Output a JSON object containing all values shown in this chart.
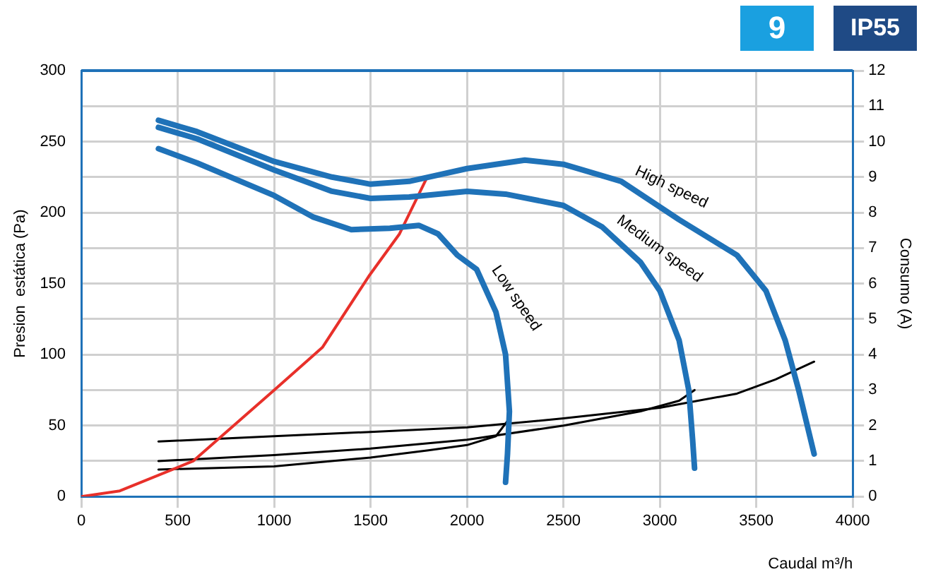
{
  "chart_data": {
    "type": "line",
    "xlabel": "Caudal m³/h",
    "ylabel": "Presion  estática (Pa)",
    "y2label": "Consumo (A)",
    "annotations": [
      "9",
      "IP55"
    ],
    "xlim": [
      0,
      4000
    ],
    "xticks": [
      0,
      500,
      1000,
      1500,
      2000,
      2500,
      3000,
      3500,
      4000
    ],
    "ylim": [
      0,
      300
    ],
    "yticks": [
      0,
      50,
      100,
      150,
      200,
      250,
      300
    ],
    "y2lim": [
      0,
      12
    ],
    "y2ticks": [
      0,
      1,
      2,
      3,
      4,
      5,
      6,
      7,
      8,
      9,
      10,
      11,
      12
    ],
    "grid": true,
    "legend": false,
    "marker": "none",
    "line_style": "solid",
    "series": [
      {
        "name": "High speed",
        "color": "#1f72b8",
        "x": [
          400,
          600,
          1000,
          1300,
          1500,
          1700,
          1800,
          2000,
          2300,
          2500,
          2800,
          3100,
          3400,
          3550,
          3650,
          3720,
          3800
        ],
        "values": [
          265,
          257,
          236,
          225,
          220,
          222,
          225,
          231,
          237,
          234,
          222,
          195,
          170,
          145,
          110,
          75,
          30
        ]
      },
      {
        "name": "Medium speed",
        "color": "#1f72b8",
        "x": [
          400,
          600,
          1000,
          1300,
          1500,
          1700,
          2000,
          2200,
          2500,
          2700,
          2900,
          3000,
          3100,
          3150,
          3170,
          3180
        ],
        "values": [
          260,
          252,
          230,
          215,
          210,
          211,
          215,
          213,
          205,
          190,
          165,
          145,
          110,
          75,
          40,
          20
        ]
      },
      {
        "name": "Low speed",
        "color": "#1f72b8",
        "x": [
          400,
          600,
          1000,
          1200,
          1400,
          1600,
          1750,
          1850,
          1950,
          2050,
          2150,
          2200,
          2220,
          2210,
          2200
        ],
        "values": [
          245,
          235,
          212,
          197,
          188,
          189,
          191,
          185,
          170,
          160,
          130,
          100,
          60,
          30,
          10
        ]
      },
      {
        "color": "#e8302a",
        "x": [
          0,
          200,
          580,
          1000,
          1250,
          1490,
          1650,
          1790
        ],
        "values": [
          0,
          4,
          25,
          75,
          105,
          155,
          185,
          224
        ]
      },
      {
        "color": "#000000",
        "axis": "y2",
        "x": [
          400,
          1000,
          1500,
          2000,
          2500,
          3000,
          3400,
          3600,
          3800
        ],
        "values": [
          1.55,
          1.7,
          1.82,
          1.95,
          2.2,
          2.5,
          2.9,
          3.3,
          3.8
        ]
      },
      {
        "color": "#000000",
        "axis": "y2",
        "x": [
          400,
          1000,
          1500,
          2000,
          2500,
          2900,
          3100,
          3180
        ],
        "values": [
          1,
          1.17,
          1.35,
          1.6,
          2,
          2.4,
          2.7,
          3
        ]
      },
      {
        "color": "#000000",
        "axis": "y2",
        "x": [
          400,
          1000,
          1500,
          1800,
          2000,
          2150,
          2220
        ],
        "values": [
          0.76,
          0.85,
          1.1,
          1.3,
          1.45,
          1.7,
          2.2
        ]
      }
    ]
  }
}
